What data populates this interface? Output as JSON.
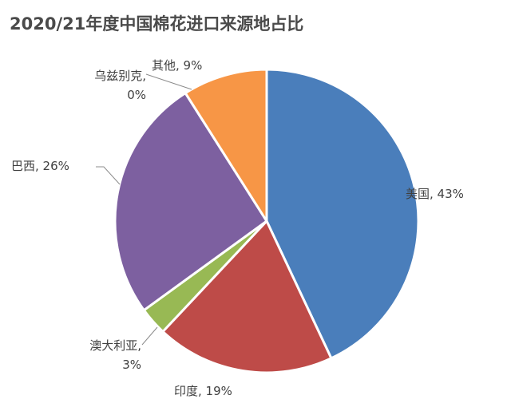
{
  "chart_data": {
    "type": "pie",
    "title": "2020/21年度中国棉花进口来源地占比",
    "categories": [
      "美国",
      "印度",
      "澳大利亚",
      "巴西",
      "乌兹别克",
      "其他"
    ],
    "values": [
      43,
      19,
      3,
      26,
      0,
      9
    ],
    "label_lines": [
      [
        "美国, 43%"
      ],
      [
        "印度, 19%"
      ],
      [
        "澳大利亚,",
        "3%"
      ],
      [
        "巴西, 26%"
      ],
      [
        "乌兹别克,",
        "0%"
      ],
      [
        "其他, 9%"
      ]
    ],
    "colors": [
      "#4a7ebb",
      "#be4b48",
      "#98b954",
      "#7d60a0",
      "#4aacc5",
      "#f79646"
    ],
    "legend": "none"
  }
}
